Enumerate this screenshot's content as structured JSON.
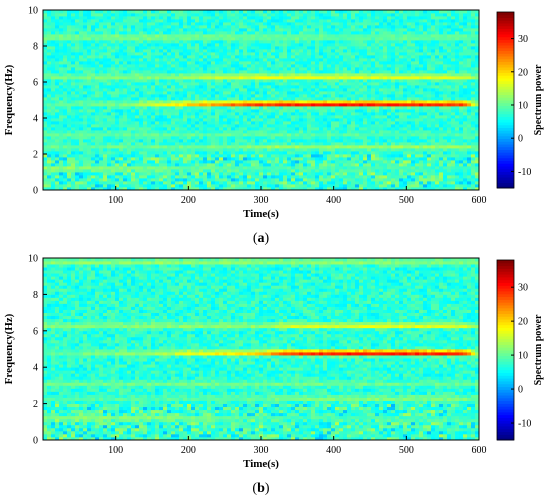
{
  "chart_data": [
    {
      "type": "heatmap",
      "panel_label": "a",
      "xlabel": "Time(s)",
      "ylabel": "Frequency(Hz)",
      "xlim": [
        0,
        600
      ],
      "ylim": [
        0,
        10
      ],
      "xticks": [
        "100",
        "200",
        "300",
        "400",
        "500",
        "600"
      ],
      "yticks": [
        "0",
        "2",
        "4",
        "6",
        "8",
        "10"
      ],
      "colorbar": {
        "label": "Spectrum power",
        "range": [
          -15,
          38
        ],
        "ticks": [
          "-10",
          "0",
          "10",
          "20",
          "30"
        ]
      },
      "background_level": 7,
      "bands": [
        {
          "freq": 4.8,
          "points": [
            [
              0,
              9
            ],
            [
              100,
              11
            ],
            [
              150,
              16
            ],
            [
              200,
              22
            ],
            [
              250,
              27
            ],
            [
              300,
              31
            ],
            [
              400,
              33
            ],
            [
              500,
              33
            ],
            [
              580,
              31
            ],
            [
              600,
              12
            ]
          ]
        },
        {
          "freq": 6.3,
          "points": [
            [
              0,
              11
            ],
            [
              200,
              13
            ],
            [
              230,
              16
            ],
            [
              300,
              18
            ],
            [
              500,
              18
            ],
            [
              580,
              17
            ],
            [
              600,
              12
            ]
          ]
        },
        {
          "freq": 8.5,
          "points": [
            [
              0,
              12
            ],
            [
              200,
              12
            ],
            [
              300,
              11
            ],
            [
              580,
              11
            ],
            [
              600,
              10
            ]
          ]
        },
        {
          "freq": 2.4,
          "points": [
            [
              0,
              10
            ],
            [
              250,
              11
            ],
            [
              300,
              13
            ],
            [
              580,
              13
            ],
            [
              600,
              11
            ]
          ]
        },
        {
          "freq": 3.1,
          "points": [
            [
              0,
              10
            ],
            [
              300,
              10
            ],
            [
              600,
              9
            ]
          ]
        },
        {
          "freq": 1.2,
          "points": [
            [
              0,
              13
            ],
            [
              150,
              11
            ],
            [
              300,
              9
            ],
            [
              600,
              8
            ]
          ]
        }
      ]
    },
    {
      "type": "heatmap",
      "panel_label": "b",
      "xlabel": "Time(s)",
      "ylabel": "Frequency(Hz)",
      "xlim": [
        0,
        600
      ],
      "ylim": [
        0,
        10
      ],
      "xticks": [
        "100",
        "200",
        "300",
        "400",
        "500",
        "600"
      ],
      "yticks": [
        "0",
        "2",
        "4",
        "6",
        "8",
        "10"
      ],
      "colorbar": {
        "label": "Spectrum power",
        "range": [
          -15,
          38
        ],
        "ticks": [
          "-10",
          "0",
          "10",
          "20",
          "30"
        ]
      },
      "background_level": 7,
      "bands": [
        {
          "freq": 4.8,
          "points": [
            [
              0,
              10
            ],
            [
              150,
              13
            ],
            [
              200,
              18
            ],
            [
              300,
              22
            ],
            [
              330,
              30
            ],
            [
              400,
              33
            ],
            [
              500,
              33
            ],
            [
              580,
              32
            ],
            [
              600,
              12
            ]
          ]
        },
        {
          "freq": 6.3,
          "points": [
            [
              0,
              12
            ],
            [
              300,
              13
            ],
            [
              330,
              17
            ],
            [
              500,
              18
            ],
            [
              580,
              17
            ],
            [
              600,
              12
            ]
          ]
        },
        {
          "freq": 9.8,
          "points": [
            [
              0,
              13
            ],
            [
              300,
              13
            ],
            [
              600,
              12
            ]
          ]
        },
        {
          "freq": 2.3,
          "points": [
            [
              0,
              9
            ],
            [
              300,
              10
            ],
            [
              330,
              12
            ],
            [
              580,
              12
            ],
            [
              600,
              10
            ]
          ]
        },
        {
          "freq": 3.1,
          "points": [
            [
              0,
              11
            ],
            [
              300,
              11
            ],
            [
              600,
              10
            ]
          ]
        },
        {
          "freq": 1.2,
          "points": [
            [
              0,
              13
            ],
            [
              200,
              12
            ],
            [
              300,
              9
            ],
            [
              600,
              8
            ]
          ]
        }
      ]
    }
  ]
}
